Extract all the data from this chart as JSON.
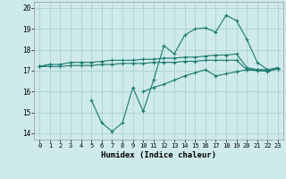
{
  "xlabel": "Humidex (Indice chaleur)",
  "x_values": [
    0,
    1,
    2,
    3,
    4,
    5,
    6,
    7,
    8,
    9,
    10,
    11,
    12,
    13,
    14,
    15,
    16,
    17,
    18,
    19,
    20,
    21,
    22,
    23
  ],
  "line1": [
    17.2,
    17.3,
    17.3,
    17.4,
    17.4,
    17.4,
    17.45,
    17.5,
    17.5,
    17.5,
    17.55,
    17.55,
    17.6,
    17.6,
    17.65,
    17.65,
    17.7,
    17.75,
    17.75,
    17.8,
    17.15,
    17.05,
    17.05,
    17.15
  ],
  "line2": [
    17.2,
    17.2,
    17.2,
    17.25,
    17.25,
    17.25,
    17.3,
    17.3,
    17.35,
    17.35,
    17.35,
    17.4,
    17.4,
    17.4,
    17.45,
    17.45,
    17.5,
    17.5,
    17.5,
    17.5,
    17.05,
    17.0,
    17.0,
    17.1
  ],
  "line3": [
    17.2,
    17.3,
    null,
    null,
    null,
    15.6,
    14.5,
    14.1,
    14.5,
    16.2,
    15.05,
    16.55,
    18.2,
    17.8,
    18.7,
    19.0,
    19.05,
    18.85,
    19.65,
    19.4,
    18.5,
    17.4,
    17.05,
    null
  ],
  "line4": [
    null,
    null,
    null,
    null,
    null,
    null,
    null,
    null,
    null,
    null,
    16.0,
    16.2,
    16.35,
    16.55,
    16.75,
    16.9,
    17.05,
    16.75,
    16.85,
    16.95,
    17.05,
    17.05,
    16.95,
    17.1
  ],
  "color": "#1a7a6e",
  "bg_color": "#ceeaea",
  "grid_color": "#aacccc",
  "ylim_min": 13.7,
  "ylim_max": 20.3,
  "yticks": [
    14,
    15,
    16,
    17,
    18,
    19,
    20
  ]
}
